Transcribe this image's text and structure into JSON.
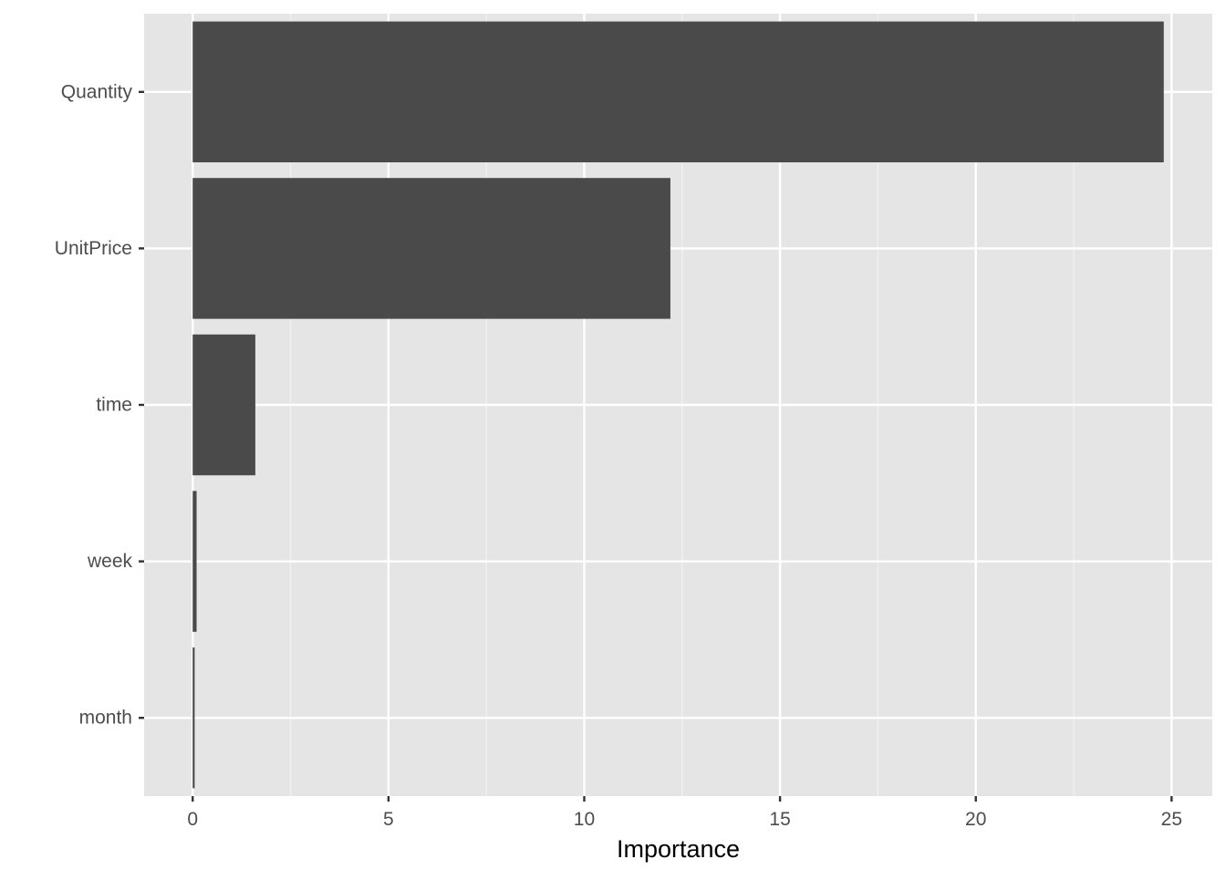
{
  "chart_data": {
    "type": "bar",
    "orientation": "horizontal",
    "categories": [
      "Quantity",
      "UnitPrice",
      "time",
      "week",
      "month"
    ],
    "values": [
      24.8,
      12.2,
      1.6,
      0.1,
      0.05
    ],
    "title": "",
    "xlabel": "Importance",
    "ylabel": "",
    "xlim": [
      -1.24,
      26.04
    ],
    "xticks": [
      0,
      5,
      10,
      15,
      20,
      25
    ],
    "x_minor_ticks": [
      2.5,
      7.5,
      12.5,
      17.5,
      22.5
    ],
    "grid": true,
    "legend": "none",
    "colors": {
      "bar": "#4a4a4a",
      "panel_background": "#e5e5e5",
      "grid_major": "#ffffff",
      "grid_minor": "#f2f2f2",
      "tick_text": "#4d4d4d",
      "axis_title": "#000000"
    }
  }
}
